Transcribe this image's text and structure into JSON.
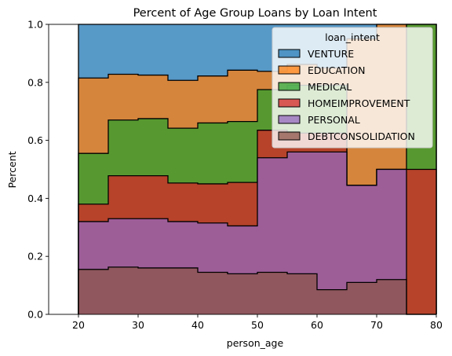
{
  "chart_data": {
    "type": "area",
    "subtype": "stacked-step-histogram",
    "title": "Percent of Age Group Loans by Loan Intent",
    "xlabel": "person_age",
    "ylabel": "Percent",
    "xlim": [
      15,
      80
    ],
    "ylim": [
      0.0,
      1.0
    ],
    "xticks": [
      "20",
      "30",
      "40",
      "50",
      "60",
      "70",
      "80"
    ],
    "yticks": [
      "0.0",
      "0.2",
      "0.4",
      "0.6",
      "0.8",
      "1.0"
    ],
    "x_bins": [
      20,
      25,
      30,
      35,
      40,
      45,
      50,
      55,
      60,
      65,
      70,
      75,
      80
    ],
    "legend_title": "loan_intent",
    "legend_position": "top-right",
    "series": [
      {
        "name": "VENTURE",
        "color": "#1f77b4",
        "cumulative": [
          1.0,
          1.0,
          1.0,
          1.0,
          1.0,
          1.0,
          1.0,
          1.0,
          1.0,
          1.0,
          1.0,
          1.0
        ]
      },
      {
        "name": "EDUCATION",
        "color": "#ff7f0e",
        "cumulative": [
          0.815,
          0.828,
          0.825,
          0.807,
          0.822,
          0.842,
          0.838,
          0.862,
          0.85,
          0.95,
          1.0,
          1.0
        ]
      },
      {
        "name": "MEDICAL",
        "color": "#2ca02c",
        "cumulative": [
          0.555,
          0.67,
          0.675,
          0.642,
          0.66,
          0.665,
          0.775,
          0.79,
          0.79,
          0.445,
          0.5,
          1.0
        ]
      },
      {
        "name": "HOMEIMPROVEMENT",
        "color": "#d62728",
        "cumulative": [
          0.38,
          0.478,
          0.478,
          0.453,
          0.45,
          0.455,
          0.635,
          0.625,
          0.625,
          0.445,
          0.5,
          0.5
        ]
      },
      {
        "name": "PERSONAL",
        "color": "#9467bd",
        "cumulative": [
          0.32,
          0.33,
          0.33,
          0.32,
          0.315,
          0.305,
          0.54,
          0.56,
          0.56,
          0.445,
          0.5,
          0.0
        ]
      },
      {
        "name": "DEBTCONSOLIDATION",
        "color": "#8c564b",
        "cumulative": [
          0.155,
          0.163,
          0.16,
          0.16,
          0.145,
          0.14,
          0.145,
          0.14,
          0.085,
          0.11,
          0.12,
          0.0
        ]
      }
    ]
  }
}
